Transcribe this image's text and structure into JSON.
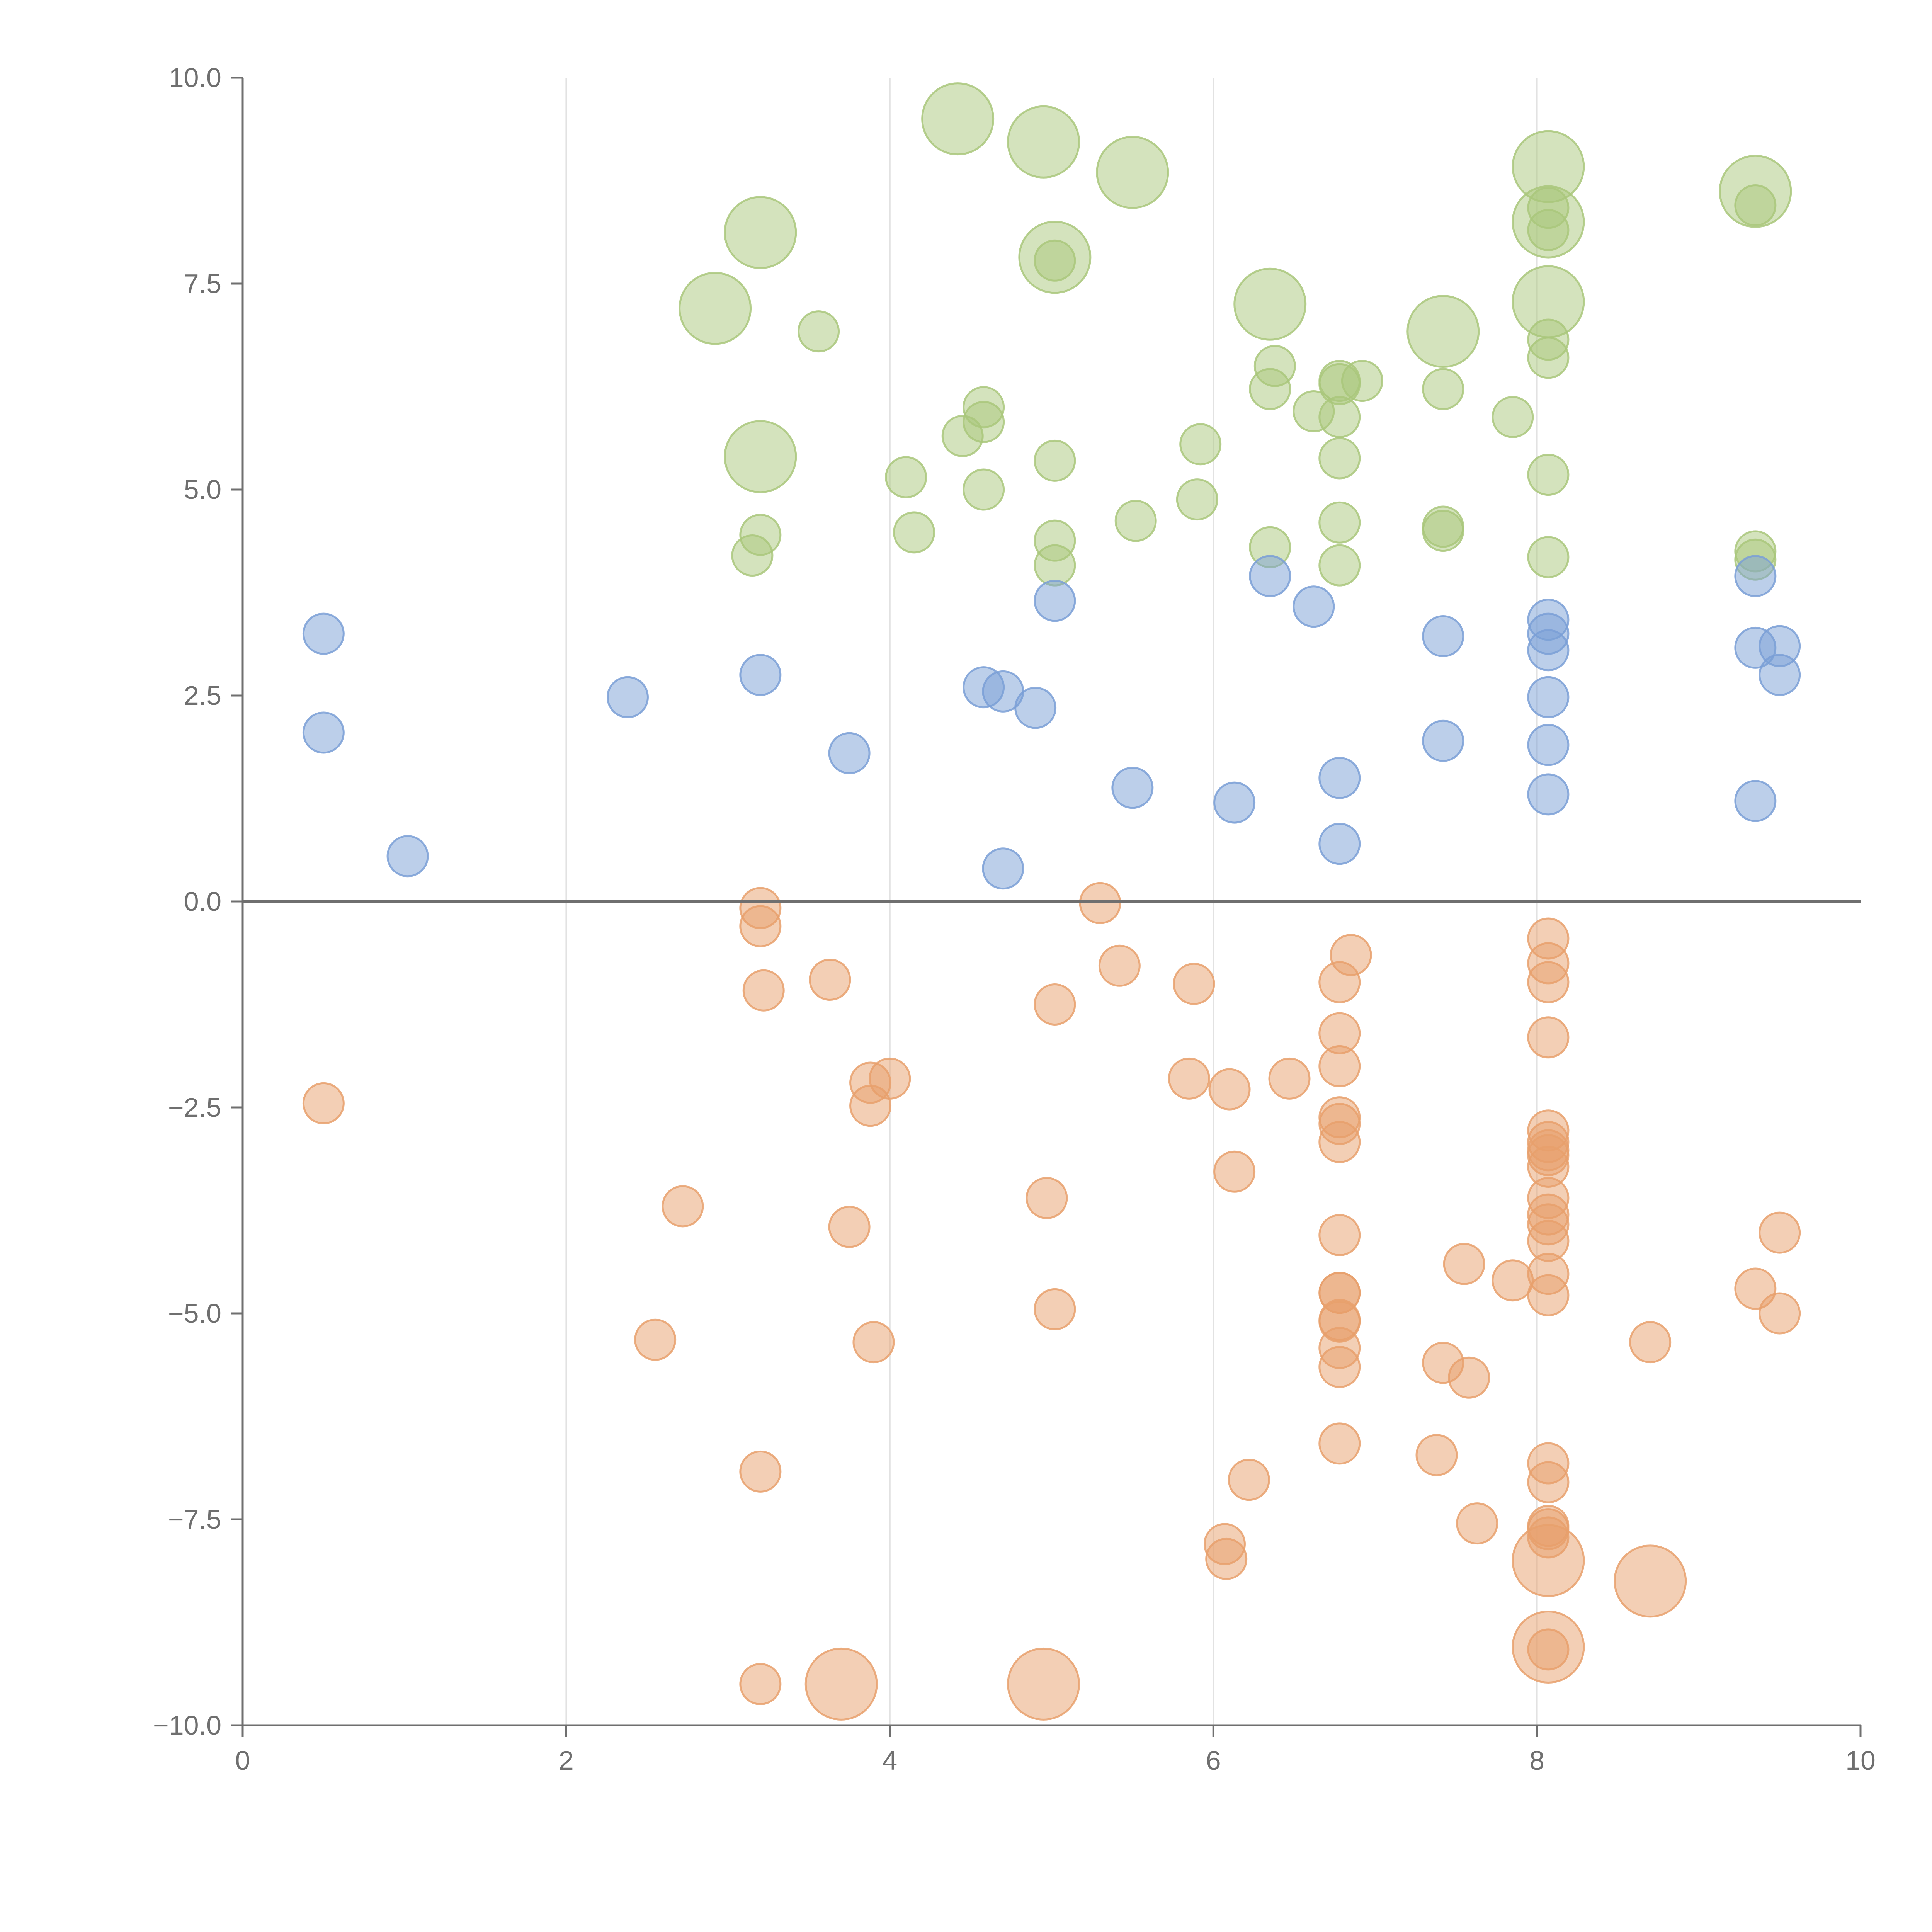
{
  "chart_data": {
    "type": "scatter",
    "title": "",
    "xlabel": "",
    "ylabel": "",
    "xlim": [
      0,
      10
    ],
    "ylim": [
      -10,
      10
    ],
    "x_ticks": [
      "0",
      "2",
      "4",
      "6",
      "8",
      "10"
    ],
    "y_ticks": [
      "10.0",
      "7.5",
      "5.0",
      "2.5",
      "0.0",
      "−2.5",
      "−5.0",
      "−7.5",
      "−10.0"
    ],
    "x_tick_values": [
      0,
      2,
      4,
      6,
      8,
      10
    ],
    "y_tick_values": [
      10,
      7.5,
      5,
      2.5,
      0,
      -2.5,
      -5,
      -7.5,
      -10
    ],
    "grid": "vertical",
    "colors": {
      "green": "#a9c77b",
      "blue": "#7a9fd6",
      "orange": "#e8a06c",
      "axis": "#6f6f6f",
      "grid": "#e2e2e2"
    },
    "series": [
      {
        "name": "green",
        "color": "#a9c77b",
        "points": [
          [
            4.42,
            9.5,
            2
          ],
          [
            4.95,
            9.22,
            2
          ],
          [
            5.5,
            8.85,
            2
          ],
          [
            3.2,
            8.12,
            2
          ],
          [
            5.02,
            7.82,
            2
          ],
          [
            5.02,
            7.78,
            1
          ],
          [
            2.92,
            7.2,
            2
          ],
          [
            3.56,
            6.92,
            1
          ],
          [
            6.35,
            7.25,
            2
          ],
          [
            7.42,
            6.92,
            2
          ],
          [
            8.07,
            8.92,
            2
          ],
          [
            8.07,
            8.42,
            1
          ],
          [
            8.07,
            8.25,
            2
          ],
          [
            8.07,
            8.15,
            1
          ],
          [
            8.07,
            7.28,
            2
          ],
          [
            8.07,
            6.82,
            1
          ],
          [
            8.07,
            6.6,
            1
          ],
          [
            9.35,
            8.62,
            2
          ],
          [
            9.35,
            8.45,
            1
          ],
          [
            6.38,
            6.5,
            1
          ],
          [
            6.35,
            6.22,
            1
          ],
          [
            6.78,
            6.32,
            1
          ],
          [
            6.78,
            6.28,
            1
          ],
          [
            6.92,
            6.32,
            1
          ],
          [
            6.62,
            5.95,
            1
          ],
          [
            6.78,
            5.88,
            1
          ],
          [
            6.78,
            5.38,
            1
          ],
          [
            7.42,
            6.22,
            1
          ],
          [
            7.85,
            5.88,
            1
          ],
          [
            4.58,
            6.0,
            1
          ],
          [
            4.58,
            5.82,
            1
          ],
          [
            4.45,
            5.65,
            1
          ],
          [
            3.2,
            5.4,
            2
          ],
          [
            4.1,
            5.15,
            1
          ],
          [
            4.58,
            5.0,
            1
          ],
          [
            5.02,
            5.35,
            1
          ],
          [
            5.92,
            5.55,
            1
          ],
          [
            5.9,
            4.88,
            1
          ],
          [
            5.52,
            4.62,
            1
          ],
          [
            3.2,
            4.45,
            1
          ],
          [
            3.15,
            4.2,
            1
          ],
          [
            4.15,
            4.48,
            1
          ],
          [
            5.02,
            4.38,
            1
          ],
          [
            5.02,
            4.08,
            1
          ],
          [
            6.35,
            4.3,
            1
          ],
          [
            6.78,
            4.6,
            1
          ],
          [
            6.78,
            4.08,
            1
          ],
          [
            7.42,
            4.55,
            1
          ],
          [
            7.42,
            4.5,
            1
          ],
          [
            8.07,
            5.18,
            1
          ],
          [
            8.07,
            4.18,
            1
          ],
          [
            9.35,
            4.25,
            1
          ],
          [
            9.35,
            4.15,
            1
          ]
        ]
      },
      {
        "name": "blue",
        "color": "#7a9fd6",
        "points": [
          [
            0.5,
            3.25,
            1
          ],
          [
            0.5,
            2.05,
            1
          ],
          [
            1.02,
            0.55,
            1
          ],
          [
            2.38,
            2.48,
            1
          ],
          [
            3.2,
            2.75,
            1
          ],
          [
            3.75,
            1.8,
            1
          ],
          [
            4.58,
            2.6,
            1
          ],
          [
            4.7,
            2.55,
            1
          ],
          [
            4.9,
            2.35,
            1
          ],
          [
            4.7,
            0.4,
            1
          ],
          [
            5.02,
            3.65,
            1
          ],
          [
            5.5,
            1.38,
            1
          ],
          [
            6.13,
            1.2,
            1
          ],
          [
            6.35,
            3.95,
            1
          ],
          [
            6.62,
            3.58,
            1
          ],
          [
            6.78,
            1.5,
            1
          ],
          [
            6.78,
            0.7,
            1
          ],
          [
            7.42,
            3.22,
            1
          ],
          [
            7.42,
            1.95,
            1
          ],
          [
            8.07,
            3.42,
            1
          ],
          [
            8.07,
            3.25,
            1
          ],
          [
            8.07,
            3.05,
            1
          ],
          [
            8.07,
            2.48,
            1
          ],
          [
            8.07,
            1.9,
            1
          ],
          [
            8.07,
            1.3,
            1
          ],
          [
            9.35,
            3.95,
            1
          ],
          [
            9.35,
            3.08,
            1
          ],
          [
            9.5,
            3.1,
            1
          ],
          [
            9.5,
            2.75,
            1
          ],
          [
            9.35,
            1.22,
            1
          ]
        ]
      },
      {
        "name": "orange",
        "color": "#e8a06c",
        "points": [
          [
            0.5,
            -2.45,
            1
          ],
          [
            3.2,
            -0.08,
            1
          ],
          [
            3.2,
            -0.3,
            1
          ],
          [
            3.22,
            -1.08,
            1
          ],
          [
            3.63,
            -0.95,
            1
          ],
          [
            2.72,
            -3.7,
            1
          ],
          [
            2.55,
            -5.32,
            1
          ],
          [
            3.2,
            -6.92,
            1
          ],
          [
            3.2,
            -9.5,
            1
          ],
          [
            3.7,
            -9.5,
            2
          ],
          [
            3.88,
            -2.2,
            1
          ],
          [
            4.0,
            -2.15,
            1
          ],
          [
            3.88,
            -2.48,
            1
          ],
          [
            3.75,
            -3.95,
            1
          ],
          [
            3.9,
            -5.35,
            1
          ],
          [
            4.95,
            -9.5,
            2
          ],
          [
            5.02,
            -1.25,
            1
          ],
          [
            4.97,
            -3.6,
            1
          ],
          [
            5.02,
            -4.95,
            1
          ],
          [
            5.3,
            -0.02,
            1
          ],
          [
            5.42,
            -0.78,
            1
          ],
          [
            5.88,
            -1.0,
            1
          ],
          [
            5.85,
            -2.15,
            1
          ],
          [
            6.1,
            -2.28,
            1
          ],
          [
            6.13,
            -3.28,
            1
          ],
          [
            6.47,
            -2.15,
            1
          ],
          [
            6.22,
            -7.02,
            1
          ],
          [
            6.07,
            -7.8,
            1
          ],
          [
            6.08,
            -7.98,
            1
          ],
          [
            6.85,
            -0.65,
            1
          ],
          [
            6.78,
            -0.98,
            1
          ],
          [
            6.78,
            -1.6,
            1
          ],
          [
            6.78,
            -2.0,
            1
          ],
          [
            6.78,
            -2.62,
            1
          ],
          [
            6.78,
            -2.7,
            1
          ],
          [
            6.78,
            -2.92,
            1
          ],
          [
            6.78,
            -4.05,
            1
          ],
          [
            6.78,
            -4.75,
            1
          ],
          [
            6.78,
            -4.75,
            1
          ],
          [
            6.78,
            -5.08,
            1
          ],
          [
            6.78,
            -5.1,
            1
          ],
          [
            6.78,
            -5.42,
            1
          ],
          [
            6.78,
            -5.65,
            1
          ],
          [
            6.78,
            -6.58,
            1
          ],
          [
            7.42,
            -5.6,
            1
          ],
          [
            7.58,
            -5.78,
            1
          ],
          [
            7.55,
            -4.4,
            1
          ],
          [
            7.85,
            -4.6,
            1
          ],
          [
            7.38,
            -6.72,
            1
          ],
          [
            7.63,
            -7.55,
            1
          ],
          [
            8.07,
            -0.45,
            1
          ],
          [
            8.07,
            -0.75,
            1
          ],
          [
            8.07,
            -0.98,
            1
          ],
          [
            8.07,
            -1.65,
            1
          ],
          [
            8.07,
            -2.78,
            1
          ],
          [
            8.07,
            -2.92,
            1
          ],
          [
            8.07,
            -3.02,
            1
          ],
          [
            8.07,
            -3.08,
            1
          ],
          [
            8.07,
            -3.22,
            1
          ],
          [
            8.07,
            -3.6,
            1
          ],
          [
            8.07,
            -3.8,
            1
          ],
          [
            8.07,
            -3.92,
            1
          ],
          [
            8.07,
            -4.12,
            1
          ],
          [
            8.07,
            -4.52,
            1
          ],
          [
            8.07,
            -4.78,
            1
          ],
          [
            8.07,
            -6.82,
            1
          ],
          [
            8.07,
            -7.05,
            1
          ],
          [
            8.07,
            -7.58,
            1
          ],
          [
            8.07,
            -7.62,
            1
          ],
          [
            8.07,
            -7.72,
            1
          ],
          [
            8.07,
            -8.0,
            2
          ],
          [
            8.07,
            -9.05,
            2
          ],
          [
            8.07,
            -9.08,
            1
          ],
          [
            8.7,
            -8.25,
            2
          ],
          [
            8.7,
            -5.35,
            1
          ],
          [
            9.35,
            -4.7,
            1
          ],
          [
            9.5,
            -4.02,
            1
          ],
          [
            9.5,
            -5.0,
            1
          ]
        ]
      }
    ]
  }
}
